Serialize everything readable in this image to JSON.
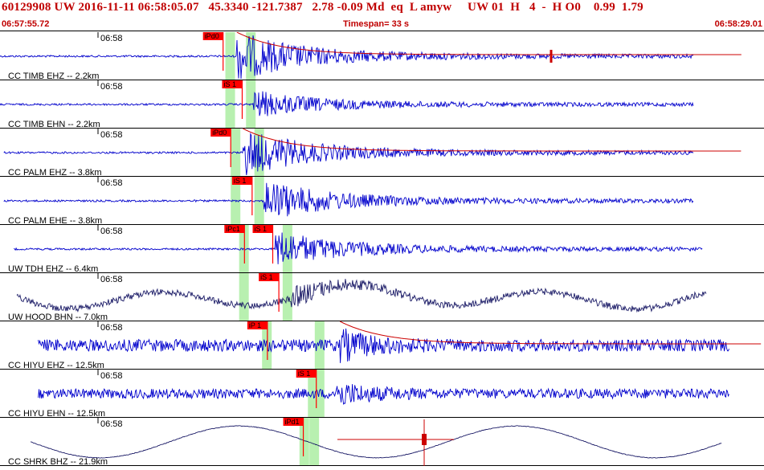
{
  "header": {
    "title": "60129908 UW 2016-11-11 06:58:05.07   45.3340 -121.7387   2.78 -0.09 Md  eq  L amyw     UW 01  H   4  -  H O0    0.99  1.79",
    "start_time": "06:57:55.72",
    "timespan": "Timespan=  33 s",
    "end_time": "06:58:29.01"
  },
  "colors": {
    "title": "#c00000",
    "trace_default": "#0000cc",
    "trace_dark": "#1a1a66",
    "pick_box": "#ff0000",
    "pick_window": "#b8f0b0",
    "coda": "#cc0000"
  },
  "channels": [
    {
      "label": "CC TIMB EHZ -- 2.2km",
      "time_label": "06:58",
      "trace": "burst",
      "amp": 1.0,
      "trace_color": "trace_default",
      "trace_start": 0.0,
      "trace_end": 0.908,
      "onset": 0.31,
      "picks": [
        {
          "text": "iPd0",
          "pos": 0.292
        }
      ],
      "green": [
        0.295,
        0.322
      ],
      "coda": true
    },
    {
      "label": "CC TIMB EHN -- 2.2km",
      "time_label": "06:58",
      "trace": "burst",
      "amp": 0.55,
      "trace_color": "trace_default",
      "trace_start": 0.0,
      "trace_end": 0.908,
      "onset": 0.33,
      "picks": [
        {
          "text": "iS 1",
          "pos": 0.317
        }
      ],
      "green": [
        0.295,
        0.322
      ],
      "coda": false
    },
    {
      "label": "CC PALM EHZ -- 3.8km",
      "time_label": "06:58",
      "trace": "burst",
      "amp": 0.95,
      "trace_color": "trace_default",
      "trace_start": 0.005,
      "trace_end": 0.908,
      "onset": 0.318,
      "picks": [
        {
          "text": "iPd0",
          "pos": 0.302
        }
      ],
      "green": [
        0.302,
        0.333
      ],
      "coda": true
    },
    {
      "label": "CC PALM EHE -- 3.8km",
      "time_label": "06:58",
      "trace": "burst",
      "amp": 0.85,
      "trace_color": "trace_default",
      "trace_start": 0.005,
      "trace_end": 0.908,
      "onset": 0.345,
      "picks": [
        {
          "text": "iS 1",
          "pos": 0.33
        }
      ],
      "green": [
        0.302,
        0.333
      ],
      "coda": false
    },
    {
      "label": "UW TDH EHZ -- 6.4km",
      "time_label": "06:58",
      "trace": "burst",
      "amp": 0.75,
      "trace_color": "trace_default",
      "trace_start": 0.018,
      "trace_end": 0.92,
      "onset": 0.36,
      "picks": [
        {
          "text": "iPc1",
          "pos": 0.32
        },
        {
          "text": "iS 1",
          "pos": 0.357
        }
      ],
      "green": [
        0.313,
        0.37
      ],
      "coda": false
    },
    {
      "label": "UW HOOD BHN -- 7.0km",
      "time_label": "06:58",
      "trace": "wavy",
      "amp": 0.7,
      "trace_color": "trace_dark",
      "trace_start": 0.022,
      "trace_end": 0.925,
      "onset": 0.38,
      "picks": [
        {
          "text": "iS 1",
          "pos": 0.365
        }
      ],
      "green": [
        0.313,
        0.37
      ],
      "coda": false
    },
    {
      "label": "CC HIYU EHZ -- 12.5km",
      "time_label": "06:58",
      "trace": "noisy",
      "amp": 0.75,
      "trace_color": "trace_default",
      "trace_start": 0.05,
      "trace_end": 0.955,
      "onset": 0.445,
      "picks": [
        {
          "text": "iP 1",
          "pos": 0.35
        }
      ],
      "green": [
        0.343,
        0.412
      ],
      "coda": true
    },
    {
      "label": "CC HIYU EHN -- 12.5km",
      "time_label": "06:58",
      "trace": "noisy",
      "amp": 0.6,
      "trace_color": "trace_default",
      "trace_start": 0.05,
      "trace_end": 0.955,
      "onset": 0.44,
      "picks": [
        {
          "text": "iS 1",
          "pos": 0.414
        }
      ],
      "green": [
        0.403,
        0.412
      ],
      "coda": false
    },
    {
      "label": "CC SHRK BHZ -- 21.9km",
      "time_label": "06:58",
      "trace": "long",
      "amp": 1.0,
      "trace_color": "trace_dark",
      "trace_start": 0.04,
      "trace_end": 0.945,
      "onset": 0.41,
      "picks": [
        {
          "text": "iPd1",
          "pos": 0.397
        }
      ],
      "green": [
        0.392,
        0.405
      ],
      "coda": false
    }
  ]
}
